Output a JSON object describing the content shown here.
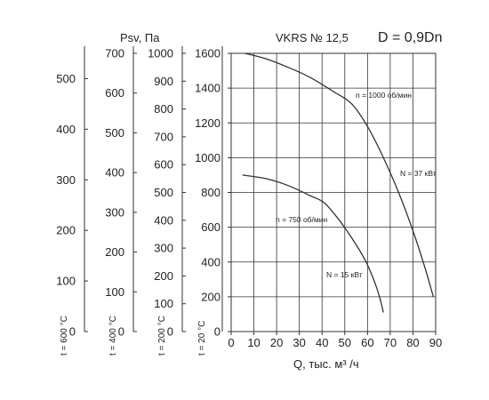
{
  "title_model": "VKRS № 12,5",
  "title_diameter": "D = 0,9Dn",
  "pressure_label": "Psv, Па",
  "chart_data": {
    "type": "line",
    "xlabel": "Q, тыс. м³ /ч",
    "ylabel": "Psv, Па",
    "xlim": [
      0,
      90
    ],
    "ylim": [
      0,
      1600
    ],
    "x_ticks": [
      "0",
      "10",
      "20",
      "30",
      "40",
      "50",
      "60",
      "70",
      "80",
      "90"
    ],
    "y_ticks": [
      "0",
      "200",
      "400",
      "600",
      "800",
      "1000",
      "1200",
      "1400",
      "1600"
    ],
    "grid": true,
    "extra_axes": [
      {
        "label": "t = 600 °C",
        "max": 550,
        "ticks": [
          "0",
          "100",
          "200",
          "300",
          "400",
          "500"
        ]
      },
      {
        "label": "t = 400 °C",
        "max": 700,
        "ticks": [
          "0",
          "100",
          "200",
          "300",
          "400",
          "500",
          "600",
          "700"
        ]
      },
      {
        "label": "t = 200 °C",
        "max": 1000,
        "ticks": [
          "0",
          "100",
          "200",
          "300",
          "400",
          "500",
          "600",
          "700",
          "800",
          "900",
          "1000"
        ]
      },
      {
        "label": "t = 20 °C"
      }
    ],
    "series": [
      {
        "name": "n = 1000 об/мин",
        "power_label": "N = 37 кВт",
        "x": [
          6,
          15,
          25,
          35,
          45,
          53,
          60,
          67,
          74,
          80,
          85,
          89
        ],
        "y": [
          1600,
          1570,
          1520,
          1460,
          1380,
          1310,
          1180,
          1000,
          790,
          580,
          380,
          200
        ]
      },
      {
        "name": "n = 750 об/мин",
        "power_label": "N = 15 кВт",
        "x": [
          5,
          15,
          25,
          35,
          41,
          47,
          53,
          59,
          63,
          65.5,
          67
        ],
        "y": [
          900,
          880,
          840,
          780,
          740,
          650,
          540,
          410,
          290,
          190,
          110
        ]
      }
    ]
  }
}
